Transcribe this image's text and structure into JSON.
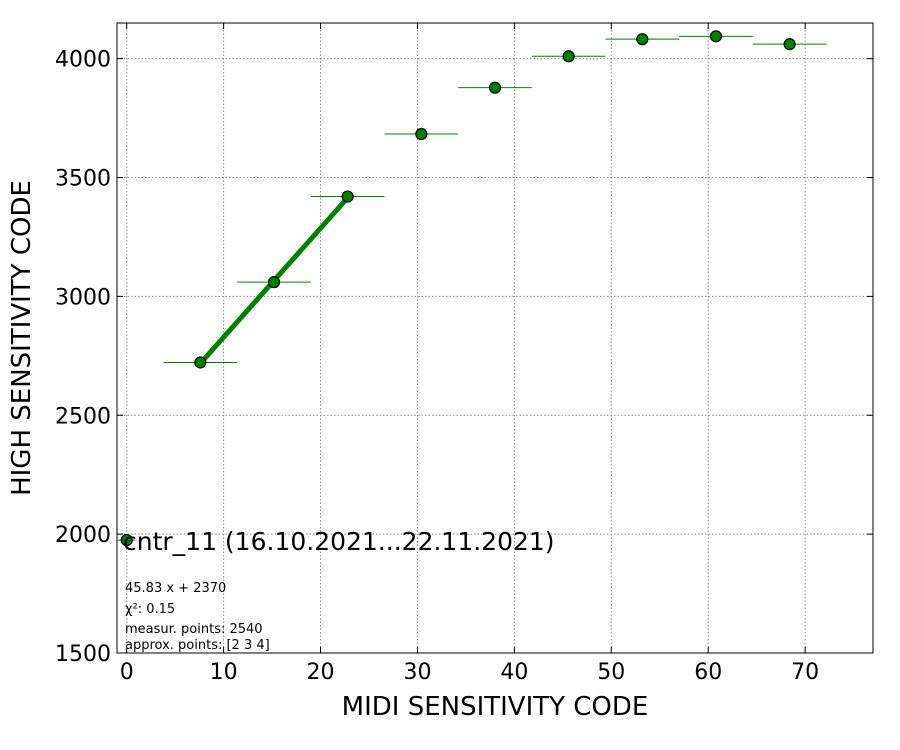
{
  "chart_data": {
    "type": "scatter",
    "xlabel": "MIDI SENSITIVITY CODE",
    "ylabel": "HIGH SENSITIVITY CODE",
    "xlim": [
      -1,
      77
    ],
    "ylim": [
      1500,
      4150
    ],
    "xticks": [
      "0",
      "10",
      "20",
      "30",
      "40",
      "50",
      "60",
      "70"
    ],
    "yticks": [
      "1500",
      "2000",
      "2500",
      "3000",
      "3500",
      "4000"
    ],
    "grid": true,
    "colors": {
      "points": "#008000",
      "fit_line": "#008000",
      "point_edge": "#000000"
    },
    "points": [
      {
        "x": 0,
        "y": 1975,
        "xerr": 0
      },
      {
        "x": 7.6,
        "y": 2722,
        "xerr": 3.8
      },
      {
        "x": 15.2,
        "y": 3060,
        "xerr": 3.8
      },
      {
        "x": 22.8,
        "y": 3420,
        "xerr": 3.8
      },
      {
        "x": 30.4,
        "y": 3683,
        "xerr": 3.8
      },
      {
        "x": 38.0,
        "y": 3878,
        "xerr": 3.8
      },
      {
        "x": 45.6,
        "y": 4010,
        "xerr": 3.8
      },
      {
        "x": 53.2,
        "y": 4082,
        "xerr": 3.8
      },
      {
        "x": 60.8,
        "y": 4094,
        "xerr": 3.8
      },
      {
        "x": 68.4,
        "y": 4061,
        "xerr": 3.8
      }
    ],
    "fit": {
      "x_start": 7.6,
      "x_end": 22.8,
      "slope": 45.83,
      "intercept": 2370
    },
    "annotations": {
      "title": "cntr_11 (16.10.2021...22.11.2021)",
      "equation": "45.83 x + 2370",
      "chi2_label": "χ²: 0.15",
      "measured": "measur. points: 2540",
      "approx": "approx. points: [2 3 4]"
    }
  }
}
